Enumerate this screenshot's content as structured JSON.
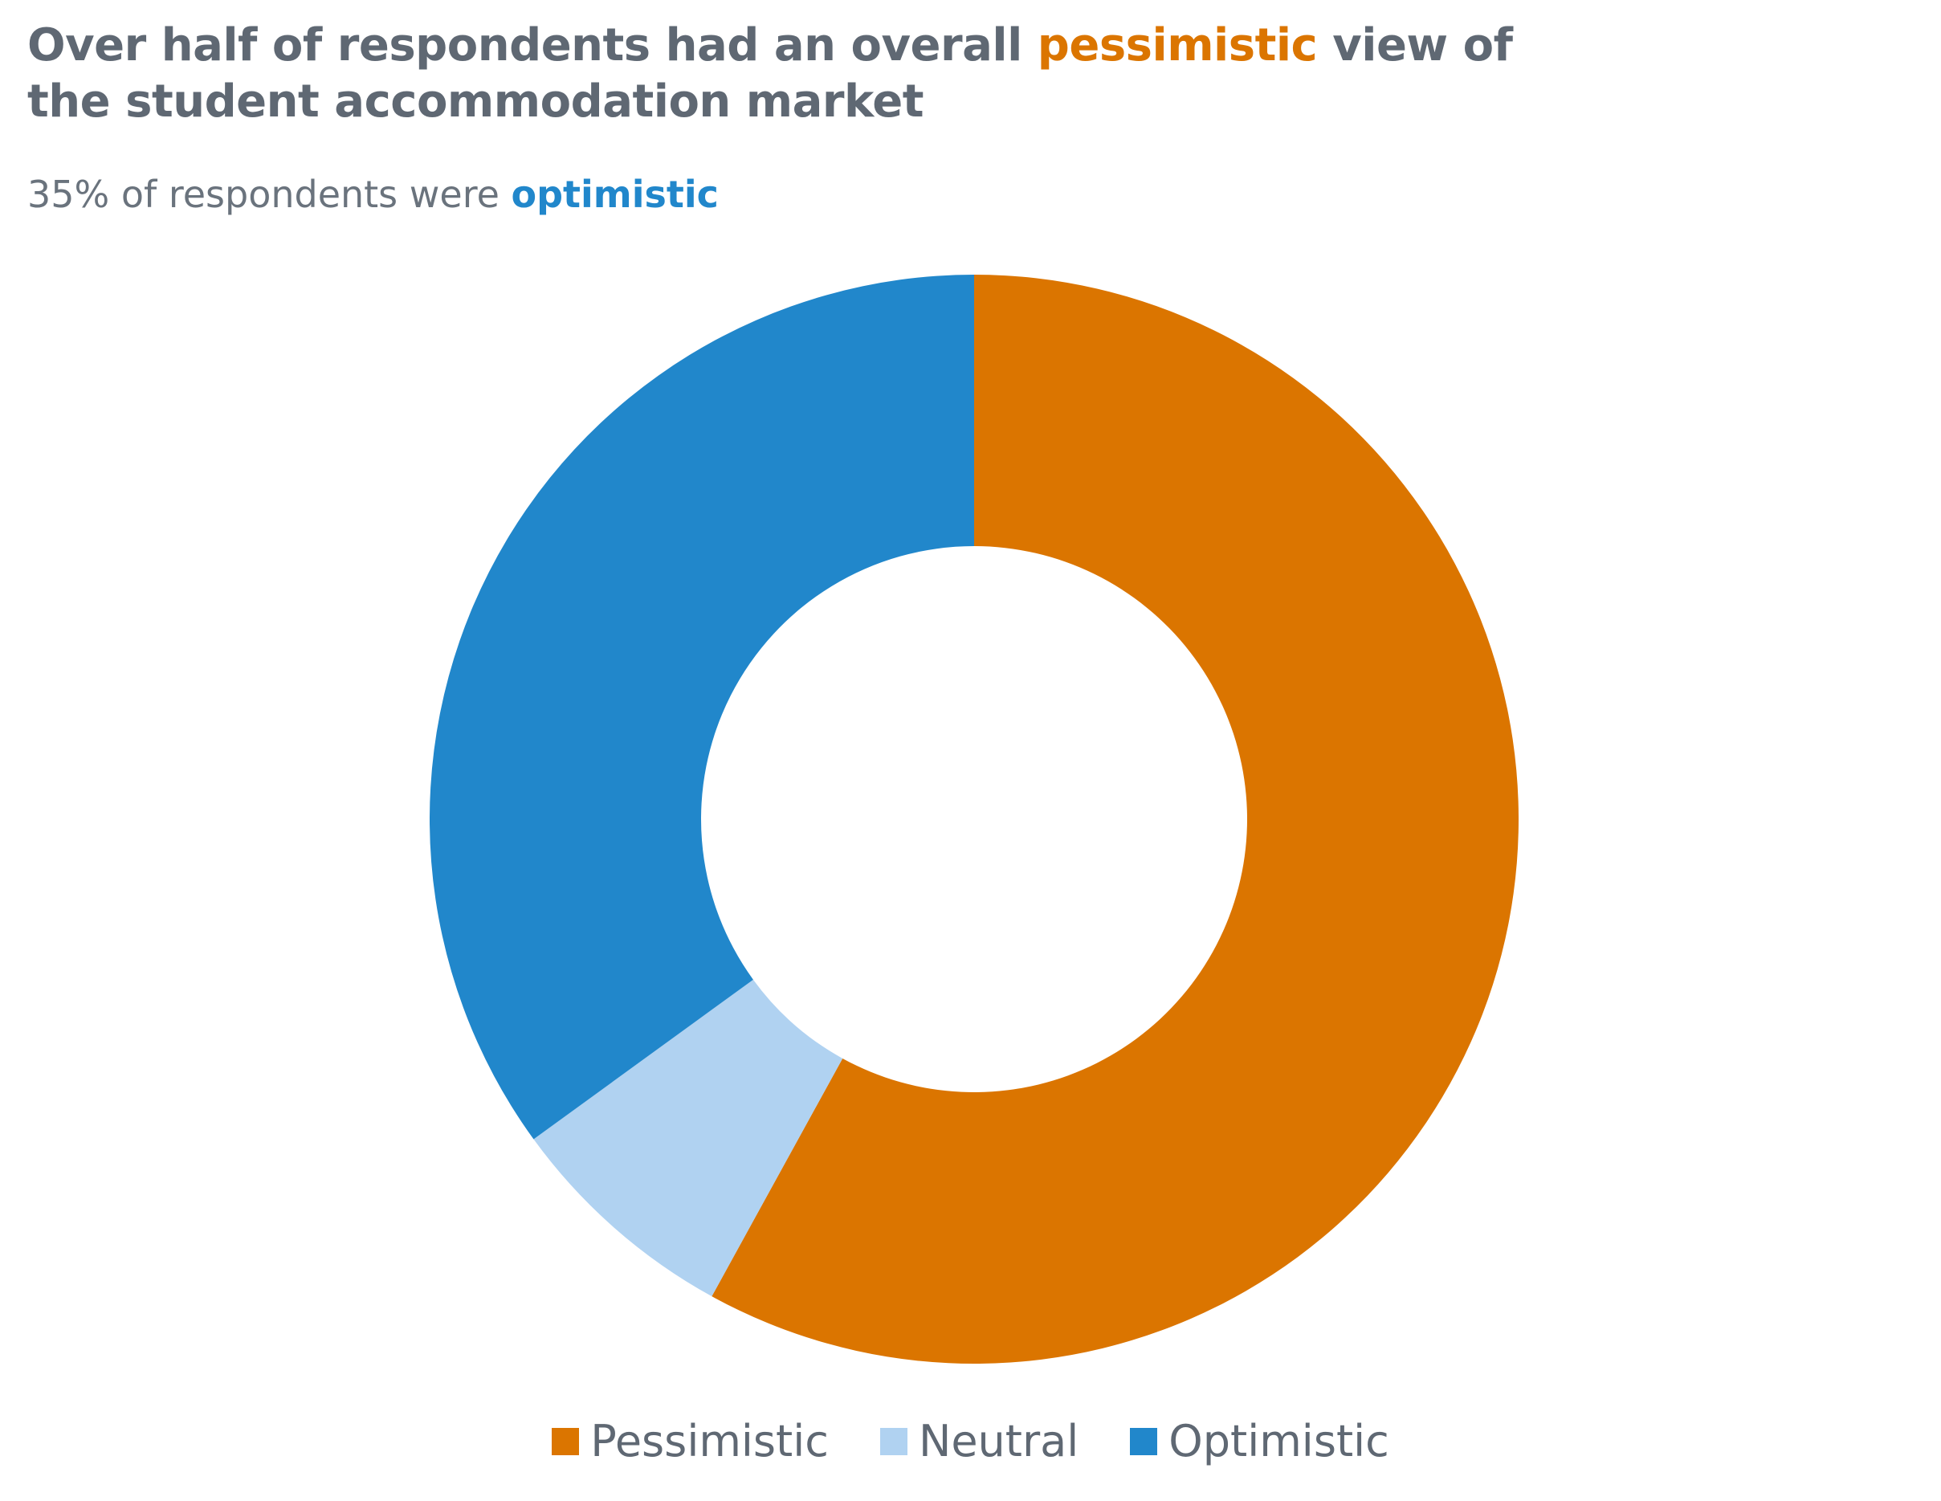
{
  "title": {
    "part1": "Over half of respondents had an overall ",
    "highlight": "pessimistic",
    "part2": " view of the student accommodation market"
  },
  "subtitle": {
    "part1": "35% of respondents were ",
    "highlight": "optimistic"
  },
  "colors": {
    "pessimistic": "#db7500",
    "neutral": "#b0d2f1",
    "optimistic": "#2187cb",
    "text": "#5f6873"
  },
  "chart_data": {
    "type": "pie",
    "variant": "donut",
    "title": "Over half of respondents had an overall pessimistic view of the student accommodation market",
    "subtitle": "35% of respondents were optimistic",
    "categories": [
      "Pessimistic",
      "Neutral",
      "Optimistic"
    ],
    "values": [
      58,
      7,
      35
    ],
    "unit": "%",
    "legend_position": "bottom",
    "series_colors": [
      "#db7500",
      "#b0d2f1",
      "#2187cb"
    ]
  }
}
